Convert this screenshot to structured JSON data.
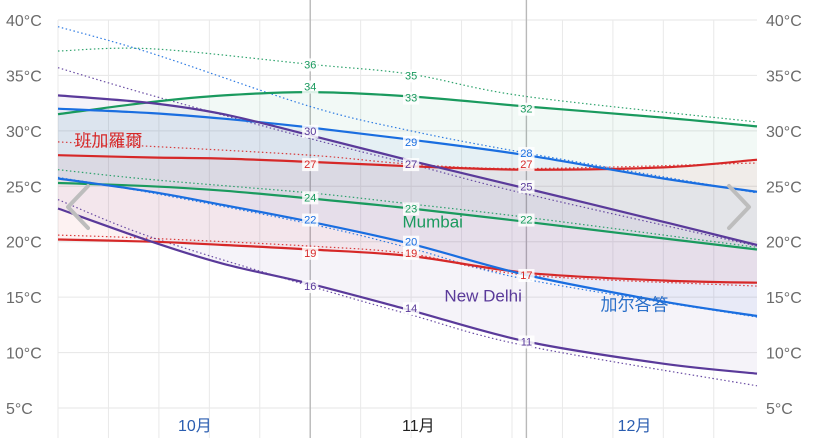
{
  "chart_data": {
    "type": "line",
    "y_unit": "°C",
    "ylim": [
      5,
      40
    ],
    "yticks": [
      "5°C",
      "10°C",
      "15°C",
      "20°C",
      "25°C",
      "30°C",
      "35°C",
      "40°C"
    ],
    "x_axis": {
      "type": "date",
      "start": "2024-09-27",
      "end": "2025-01-02",
      "month_labels": [
        {
          "label": "10月",
          "date": "2024-10-16",
          "color": "#2a5db0"
        },
        {
          "label": "11月",
          "date": "2024-11-16",
          "color": "#222222"
        },
        {
          "label": "12月",
          "date": "2024-12-16",
          "color": "#2a5db0"
        }
      ],
      "current_period": [
        "2024-11-01",
        "2024-12-01"
      ]
    },
    "grid": true,
    "series": [
      {
        "name": "Mumbai",
        "color": "#1a9a5e",
        "label_color": "#1a9a5e",
        "high": {
          "x": [
            "2024-09-27",
            "2024-10-10",
            "2024-10-20",
            "2024-11-01",
            "2024-11-15",
            "2024-12-01",
            "2024-12-20",
            "2025-01-02"
          ],
          "y": [
            31.5,
            32.6,
            33.2,
            33.5,
            33.1,
            32.2,
            31.2,
            30.4
          ]
        },
        "low": {
          "x": [
            "2024-09-27",
            "2024-10-10",
            "2024-10-20",
            "2024-11-01",
            "2024-11-15",
            "2024-12-01",
            "2024-12-20",
            "2025-01-02"
          ],
          "y": [
            25.3,
            25.0,
            24.6,
            23.9,
            23.0,
            21.8,
            20.3,
            19.3
          ]
        },
        "record_high": {
          "x": [
            "2024-09-27",
            "2024-10-10",
            "2024-11-01",
            "2024-11-15",
            "2024-12-01",
            "2025-01-02"
          ],
          "y": [
            37.2,
            37.4,
            36.0,
            35.1,
            33.1,
            30.8
          ]
        },
        "record_low": {
          "x": [
            "2024-09-27",
            "2024-10-10",
            "2024-11-01",
            "2024-11-15",
            "2024-12-01",
            "2025-01-02"
          ],
          "y": [
            26.5,
            25.6,
            24.4,
            23.4,
            22.2,
            19.5
          ]
        },
        "data_labels": [
          {
            "x": "2024-11-01",
            "y": 36,
            "text": "36"
          },
          {
            "x": "2024-11-15",
            "y": 35,
            "text": "35"
          },
          {
            "x": "2024-11-01",
            "y": 34,
            "text": "34"
          },
          {
            "x": "2024-11-15",
            "y": 33,
            "text": "33"
          },
          {
            "x": "2024-12-01",
            "y": 32,
            "text": "32"
          },
          {
            "x": "2024-11-01",
            "y": 24,
            "text": "24"
          },
          {
            "x": "2024-11-15",
            "y": 23,
            "text": "23"
          },
          {
            "x": "2024-12-01",
            "y": 22,
            "text": "22"
          }
        ],
        "series_label": {
          "text": "Mumbai",
          "x": "2024-11-18",
          "y": 21.3
        }
      },
      {
        "name": "班加羅爾",
        "color": "#d62828",
        "label_color": "#d62828",
        "high": {
          "x": [
            "2024-09-27",
            "2024-10-10",
            "2024-10-20",
            "2024-11-01",
            "2024-11-15",
            "2024-12-01",
            "2024-12-20",
            "2025-01-02"
          ],
          "y": [
            27.8,
            27.6,
            27.5,
            27.2,
            26.8,
            26.5,
            26.7,
            27.4
          ]
        },
        "low": {
          "x": [
            "2024-09-27",
            "2024-10-10",
            "2024-10-20",
            "2024-11-01",
            "2024-11-15",
            "2024-12-01",
            "2024-12-20",
            "2025-01-02"
          ],
          "y": [
            20.2,
            20.0,
            19.7,
            19.3,
            18.7,
            17.2,
            16.5,
            16.3
          ]
        },
        "record_high": {
          "x": [
            "2024-09-27",
            "2024-10-10",
            "2024-11-01",
            "2024-11-15",
            "2024-12-01",
            "2025-01-02"
          ],
          "y": [
            29.0,
            28.6,
            27.8,
            27.0,
            26.6,
            27.1
          ]
        },
        "record_low": {
          "x": [
            "2024-09-27",
            "2024-10-10",
            "2024-11-01",
            "2024-11-15",
            "2024-12-01",
            "2025-01-02"
          ],
          "y": [
            20.6,
            20.3,
            19.6,
            18.9,
            17.0,
            16.0
          ]
        },
        "data_labels": [
          {
            "x": "2024-11-01",
            "y": 27,
            "text": "27"
          },
          {
            "x": "2024-12-01",
            "y": 27,
            "text": "27"
          },
          {
            "x": "2024-11-01",
            "y": 19,
            "text": "19"
          },
          {
            "x": "2024-11-15",
            "y": 19,
            "text": "19"
          },
          {
            "x": "2024-12-01",
            "y": 17,
            "text": "17"
          }
        ],
        "series_label": {
          "text": "班加羅爾",
          "x": "2024-10-04",
          "y": 28.6
        }
      },
      {
        "name": "加尔各答",
        "color": "#1a6ee0",
        "label_color": "#2a6fc9",
        "high": {
          "x": [
            "2024-09-27",
            "2024-10-10",
            "2024-10-20",
            "2024-11-01",
            "2024-11-15",
            "2024-12-01",
            "2024-12-20",
            "2025-01-02"
          ],
          "y": [
            32.0,
            31.6,
            31.1,
            30.3,
            29.2,
            27.8,
            25.7,
            24.5
          ]
        },
        "low": {
          "x": [
            "2024-09-27",
            "2024-10-10",
            "2024-10-20",
            "2024-11-01",
            "2024-11-15",
            "2024-12-01",
            "2024-12-20",
            "2025-01-02"
          ],
          "y": [
            25.7,
            24.5,
            23.3,
            21.8,
            19.8,
            17.0,
            14.6,
            13.3
          ]
        },
        "record_high": {
          "x": [
            "2024-09-27",
            "2024-10-10",
            "2024-11-01",
            "2024-11-15",
            "2024-12-01",
            "2025-01-02"
          ],
          "y": [
            39.4,
            37.0,
            32.2,
            30.0,
            28.0,
            24.4
          ]
        },
        "record_low": {
          "x": [
            "2024-09-27",
            "2024-10-10",
            "2024-11-01",
            "2024-11-15",
            "2024-12-01",
            "2025-01-02"
          ],
          "y": [
            25.8,
            24.4,
            21.6,
            19.4,
            16.6,
            13.2
          ]
        },
        "data_labels": [
          {
            "x": "2024-11-15",
            "y": 29,
            "text": "29"
          },
          {
            "x": "2024-12-01",
            "y": 28,
            "text": "28"
          },
          {
            "x": "2024-11-01",
            "y": 22,
            "text": "22"
          },
          {
            "x": "2024-11-15",
            "y": 20,
            "text": "20"
          }
        ],
        "series_label": {
          "text": "加尔各答",
          "x": "2024-12-16",
          "y": 13.8
        }
      },
      {
        "name": "New Delhi",
        "color": "#5a3a9a",
        "label_color": "#5a3a9a",
        "high": {
          "x": [
            "2024-09-27",
            "2024-10-10",
            "2024-10-20",
            "2024-11-01",
            "2024-11-15",
            "2024-12-01",
            "2024-12-20",
            "2025-01-02"
          ],
          "y": [
            33.2,
            32.5,
            31.5,
            29.6,
            27.3,
            24.8,
            21.8,
            19.7
          ]
        },
        "low": {
          "x": [
            "2024-09-27",
            "2024-10-10",
            "2024-10-20",
            "2024-11-01",
            "2024-11-15",
            "2024-12-01",
            "2024-12-20",
            "2025-01-02"
          ],
          "y": [
            23.0,
            20.0,
            18.0,
            16.2,
            13.8,
            11.0,
            9.0,
            8.1
          ]
        },
        "record_high": {
          "x": [
            "2024-09-27",
            "2024-10-10",
            "2024-11-01",
            "2024-11-15",
            "2024-12-01",
            "2025-01-02"
          ],
          "y": [
            35.7,
            33.2,
            29.3,
            27.0,
            24.3,
            19.6
          ]
        },
        "record_low": {
          "x": [
            "2024-09-27",
            "2024-10-10",
            "2024-11-01",
            "2024-11-15",
            "2024-12-01",
            "2025-01-02"
          ],
          "y": [
            23.8,
            20.4,
            16.0,
            13.4,
            10.6,
            7.0
          ]
        },
        "data_labels": [
          {
            "x": "2024-11-01",
            "y": 30,
            "text": "30"
          },
          {
            "x": "2024-11-15",
            "y": 27,
            "text": "27"
          },
          {
            "x": "2024-12-01",
            "y": 25,
            "text": "25"
          },
          {
            "x": "2024-11-01",
            "y": 16,
            "text": "16"
          },
          {
            "x": "2024-11-15",
            "y": 14,
            "text": "14"
          },
          {
            "x": "2024-12-01",
            "y": 11,
            "text": "11"
          }
        ],
        "series_label": {
          "text": "New Delhi",
          "x": "2024-11-25",
          "y": 14.6
        }
      }
    ]
  },
  "navigation": {
    "prev_icon": "chevron-left-icon",
    "next_icon": "chevron-right-icon"
  }
}
